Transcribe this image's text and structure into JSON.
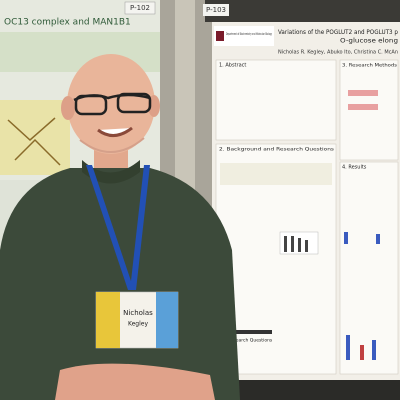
{
  "scene": {
    "left_poster": {
      "label": "P-102",
      "title": "OC13 complex and MAN1B1"
    },
    "right_poster": {
      "label": "P-103",
      "department": "Department of Biochemistry and Molecular Biology",
      "title": "Variations of the POGLUT2 and POGLUT3 p",
      "subtitle": "O-glucose elong",
      "authors": "Nicholas R. Kegley, Abuko Ito, Christina C. McAn",
      "sections": [
        "1. Abstract",
        "3. Research Methods",
        "2. Background and Research Questions",
        "4. Results",
        "5. Research Questions"
      ]
    },
    "badge": {
      "first_name": "Nicholas",
      "last_name": "Kegley"
    }
  }
}
